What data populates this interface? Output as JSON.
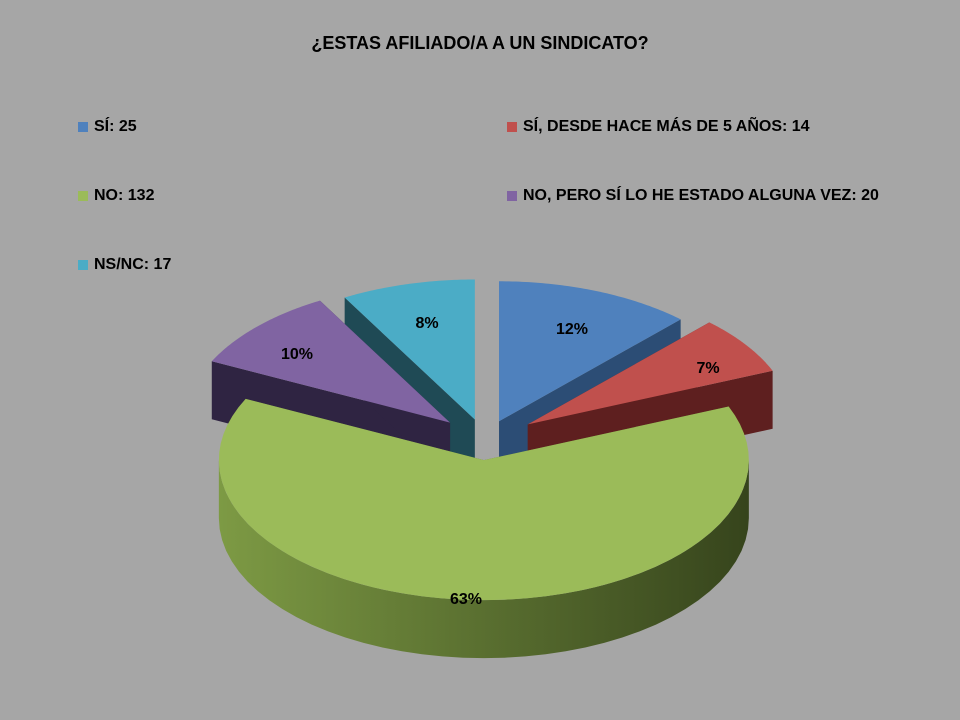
{
  "chart_data": {
    "type": "pie",
    "title": "¿ESTAS AFILIADO/A A UN SINDICATO?",
    "slices": [
      {
        "legend": "SÍ: 25",
        "value": 25,
        "percent_label": "12%",
        "color": "#4f81bd",
        "side_color": "#2c4d75",
        "legend_color": "#4f81bd"
      },
      {
        "legend": "SÍ, DESDE HACE MÁS DE 5 AÑOS: 14",
        "value": 14,
        "percent_label": "7%",
        "color": "#c0504d",
        "side_color": "#5e1f1f",
        "legend_color": "#c0504d"
      },
      {
        "legend": "NO: 132",
        "value": 132,
        "percent_label": "63%",
        "color": "#9bbb59",
        "side_color": "#5d7333",
        "legend_color": "#9bbb59"
      },
      {
        "legend": "NO, PERO SÍ LO HE ESTADO ALGUNA VEZ: 20",
        "value": 20,
        "percent_label": "10%",
        "color": "#8064a2",
        "side_color": "#2f2442",
        "legend_color": "#8064a2"
      },
      {
        "legend": "NS/NC: 17",
        "value": 17,
        "percent_label": "8%",
        "color": "#4bacc6",
        "side_color": "#1f4a55",
        "legend_color": "#4bacc6"
      }
    ],
    "legend_position": "top",
    "exploded": true,
    "three_d": true
  }
}
